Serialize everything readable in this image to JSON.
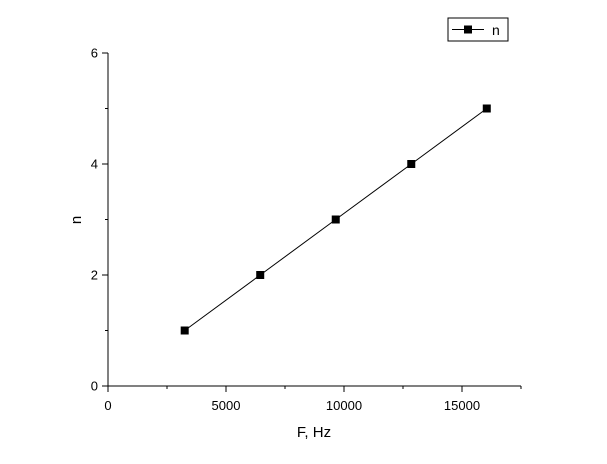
{
  "chart_data": {
    "type": "line",
    "xlabel": "F, Hz",
    "ylabel": "n",
    "xlim": [
      0,
      17500
    ],
    "ylim": [
      0,
      6
    ],
    "x_ticks": [
      0,
      5000,
      10000,
      15000
    ],
    "x_tick_labels": [
      "0",
      "5000",
      "10000",
      "15000"
    ],
    "y_ticks": [
      0,
      2,
      4,
      6
    ],
    "y_tick_labels": [
      "0",
      "2",
      "4",
      "6"
    ],
    "x_minor_step": 2500,
    "y_minor_step": 1,
    "grid": false,
    "legend_position": "top-right",
    "series": [
      {
        "name": "n",
        "marker": "square",
        "color": "#000000",
        "x": [
          3250,
          6450,
          9650,
          12850,
          16050
        ],
        "y": [
          1,
          2,
          3,
          4,
          5
        ]
      }
    ]
  }
}
